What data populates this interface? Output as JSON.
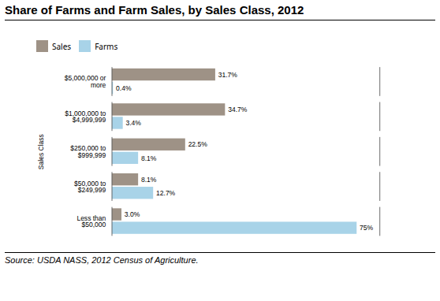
{
  "chart_data": {
    "type": "bar",
    "orientation": "horizontal",
    "title": "Share of Farms and Farm Sales, by Sales Class, 2012",
    "categories": [
      "$5,000,000 or\nmore",
      "$1,000,000 to\n$4,999,999",
      "$250,000 to\n$999,999",
      "$50,000 to\n$249,999",
      "Less than\n$50,000"
    ],
    "series": [
      {
        "name": "Sales",
        "color": "#9e9286",
        "values": [
          31.7,
          34.7,
          22.5,
          8.1,
          3.0
        ],
        "value_labels": [
          "31.7%",
          "34.7%",
          "22.5%",
          "8.1%",
          "3.0%"
        ]
      },
      {
        "name": "Farms",
        "color": "#a8d3e8",
        "values": [
          0.4,
          3.4,
          8.1,
          12.7,
          75.0
        ],
        "value_labels": [
          "0.4%",
          "3.4%",
          "8.1%",
          "12.7%",
          "75%"
        ]
      }
    ],
    "ylabel": "Sales Class",
    "annotations": [
      "Source: USDA NASS, 2012 Census of Agriculture."
    ],
    "xlim": [
      0,
      82
    ],
    "tick_labels": "y",
    "grid": false,
    "legend": "top",
    "data_labels": true
  }
}
